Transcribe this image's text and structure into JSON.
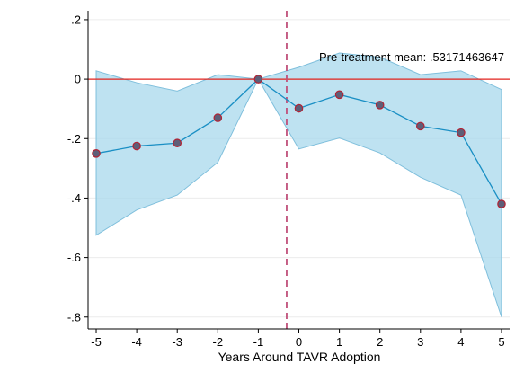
{
  "chart_data": {
    "type": "line",
    "title": "",
    "xlabel": "Years Around TAVR Adoption",
    "ylabel": "",
    "x": [
      -5,
      -4,
      -3,
      -2,
      -1,
      0,
      1,
      2,
      3,
      4,
      5
    ],
    "x_ticks": [
      "-5",
      "-4",
      "-3",
      "-2",
      "-1",
      "0",
      "1",
      "2",
      "3",
      "4",
      "5"
    ],
    "y_ticks": [
      ".2",
      "0",
      "-.2",
      "-.4",
      "-.6",
      "-.8"
    ],
    "y_tick_values": [
      0.2,
      0,
      -0.2,
      -0.4,
      -0.6,
      -0.8
    ],
    "xlim": [
      -5.2,
      5.2
    ],
    "ylim": [
      -0.84,
      0.23
    ],
    "series": [
      {
        "values": [
          -0.25,
          -0.225,
          -0.215,
          -0.13,
          0.0,
          -0.098,
          -0.052,
          -0.087,
          -0.158,
          -0.18,
          -0.42
        ]
      }
    ],
    "confidence_band": {
      "lower": [
        -0.525,
        -0.44,
        -0.39,
        -0.28,
        0.0,
        -0.235,
        -0.198,
        -0.248,
        -0.33,
        -0.39,
        -0.8
      ],
      "upper": [
        0.028,
        -0.012,
        -0.04,
        0.015,
        0.0,
        0.04,
        0.088,
        0.074,
        0.015,
        0.028,
        -0.035
      ]
    },
    "reference_lines": {
      "horizontal_y": 0,
      "vertical_x": -0.3
    },
    "annotation": "Pre-treatment mean: .53171463647",
    "grid": true,
    "colors": {
      "line": "#1a8fc4",
      "marker_fill": "#5e5e78",
      "marker_outline": "#b22233",
      "band_fill": "#a8d8ec",
      "band_edge": "#7fbfdc",
      "zero_line": "#e3231c",
      "vline": "#c0507a",
      "grid": "#ececec"
    }
  }
}
